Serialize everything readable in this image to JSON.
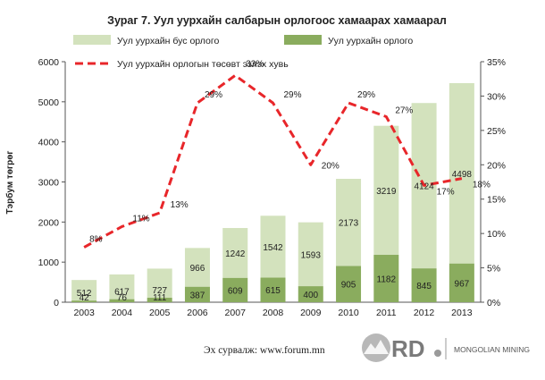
{
  "chart_data": {
    "type": "bar",
    "title": "Зураг 7.  Уул уурхайн салбарын орлогоос хамаарах хамаарал",
    "ylabel": "Тэрбум төгрөг",
    "ylim": [
      0,
      6000
    ],
    "y_ticks": [
      "0",
      "1000",
      "2000",
      "3000",
      "4000",
      "5000",
      "6000"
    ],
    "y2lim": [
      0,
      35
    ],
    "y2_ticks": [
      "0%",
      "5%",
      "10%",
      "15%",
      "20%",
      "25%",
      "30%",
      "35%"
    ],
    "categories": [
      "2003",
      "2004",
      "2005",
      "2006",
      "2007",
      "2008",
      "2009",
      "2010",
      "2011",
      "2012",
      "2013"
    ],
    "series": [
      {
        "name": "Уул уурхайн орлого",
        "kind": "stacked-bar",
        "color": "#8aac5e",
        "values": [
          42,
          76,
          111,
          387,
          609,
          615,
          400,
          905,
          1182,
          845,
          967
        ]
      },
      {
        "name": "Уул уурхайн бус орлого",
        "kind": "stacked-bar",
        "color": "#d3e2bd",
        "values": [
          512,
          617,
          727,
          966,
          1242,
          1542,
          1593,
          2173,
          3219,
          4124,
          4498
        ]
      },
      {
        "name": "Уул уурхайн орлогын төсөвт эзлэх хувь",
        "kind": "line",
        "axis": "right",
        "color": "#e8262a",
        "dashed": true,
        "values": [
          8,
          11,
          13,
          29,
          33,
          29,
          20,
          29,
          27,
          17,
          18
        ],
        "labels": [
          "8%",
          "11%",
          "13%",
          "29%",
          "33%",
          "29%",
          "20%",
          "29%",
          "27%",
          "17%",
          "18%"
        ]
      }
    ],
    "legend": "top"
  },
  "footer": {
    "source": "Эх сурвалж: www.forum.mn",
    "logo_letters": "RD",
    "logo_name": "MONGOLIAN MINING"
  }
}
